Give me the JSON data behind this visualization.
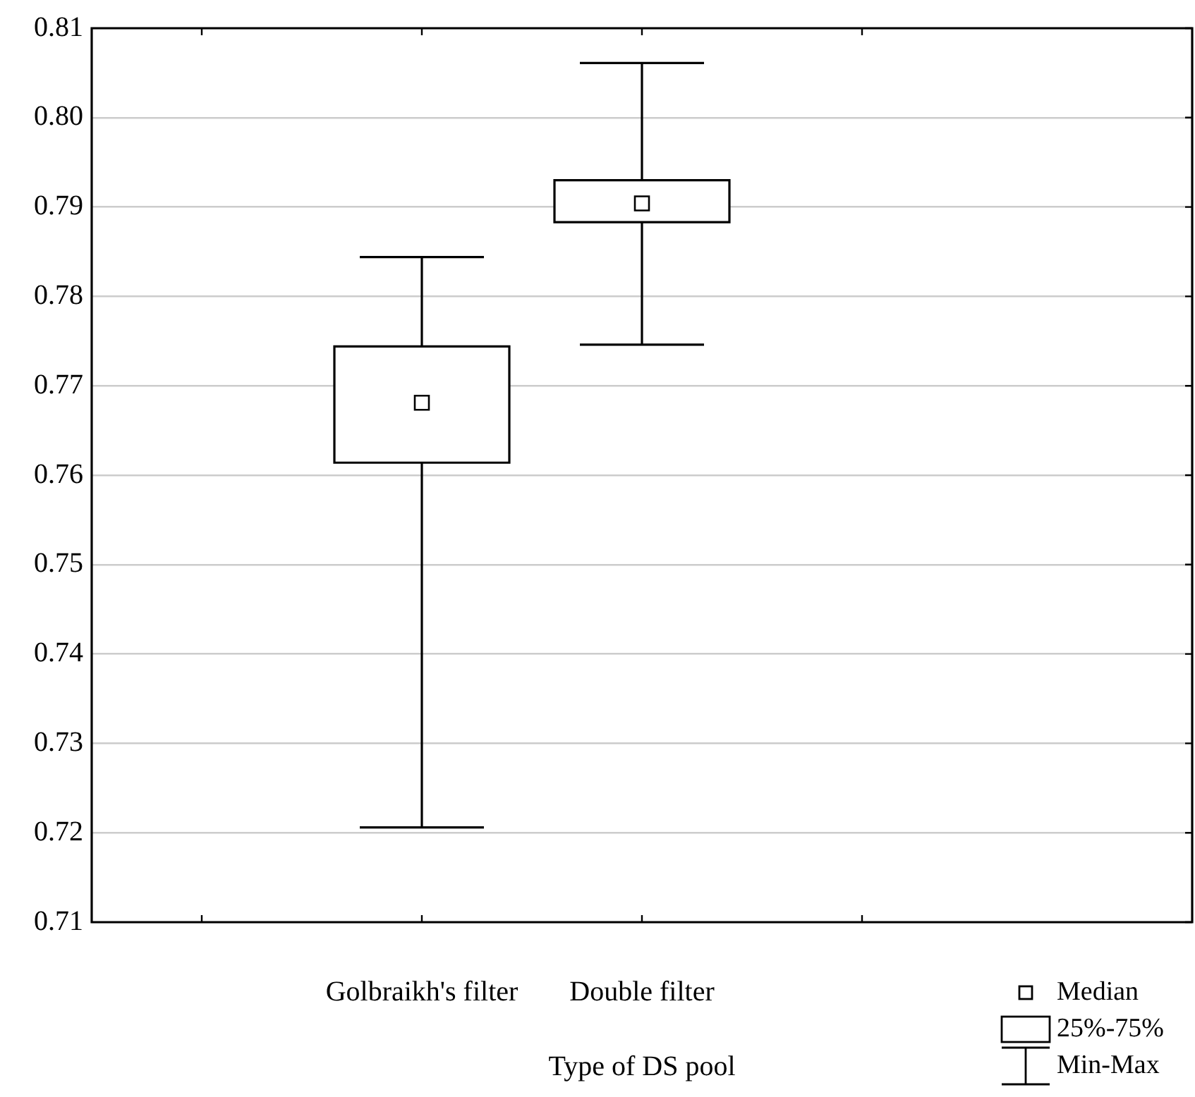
{
  "chart_data": {
    "type": "box",
    "xlabel": "Type of DS pool",
    "categories": [
      "Golbraikh's filter",
      "Double filter"
    ],
    "boxes": [
      {
        "low": 0.7206,
        "q1": 0.7614,
        "median": 0.7681,
        "q3": 0.7744,
        "high": 0.7844
      },
      {
        "low": 0.7746,
        "q1": 0.7883,
        "median": 0.7904,
        "q3": 0.793,
        "high": 0.8061
      }
    ],
    "ylim": [
      0.71,
      0.81
    ],
    "yticks": [
      0.71,
      0.72,
      0.73,
      0.74,
      0.75,
      0.76,
      0.77,
      0.78,
      0.79,
      {
        "value": 0.8,
        "label": "0.80"
      },
      0.81
    ],
    "grid": "y",
    "annotations": [
      "Median",
      "25%-75%",
      "Min-Max"
    ]
  }
}
